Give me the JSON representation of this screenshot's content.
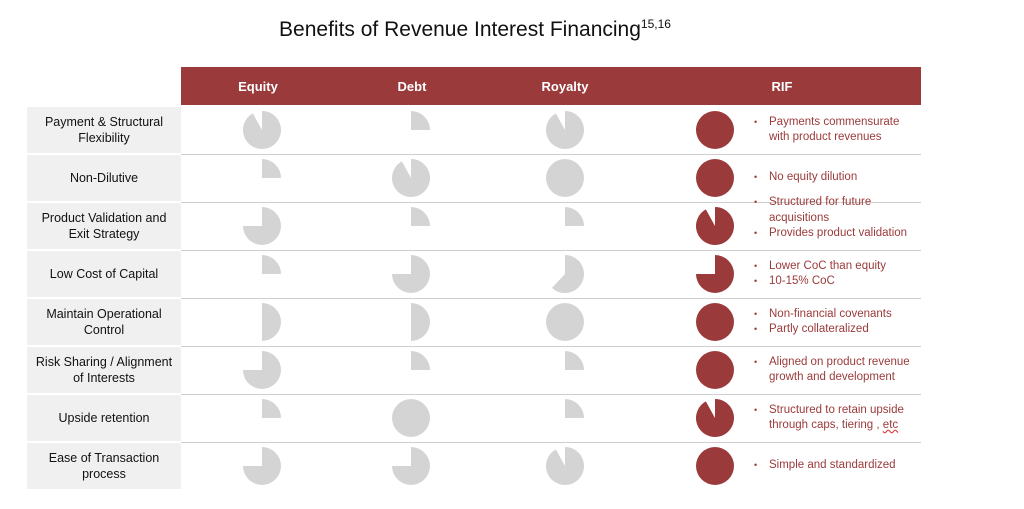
{
  "title": "Benefits of Revenue Interest Financing",
  "title_superscript": "15,16",
  "columns": [
    "Equity",
    "Debt",
    "Royalty",
    "RIF"
  ],
  "colors": {
    "header": "#9b3a3b",
    "pie_gray": "#d4d4d4",
    "pie_rif": "#9b3a3b",
    "note_text": "#9b3a3b",
    "label_bg": "#f0f0f0"
  },
  "rows": [
    {
      "label": "Payment & Structural Flexibility",
      "ratings": [
        0.92,
        0.25,
        0.92,
        1.0
      ],
      "notes": [
        "Payments commensurate with product revenues"
      ]
    },
    {
      "label": "Non-Dilutive",
      "ratings": [
        0.25,
        0.92,
        1.0,
        1.0
      ],
      "notes": [
        "No equity dilution"
      ]
    },
    {
      "label": "Product Validation and Exit Strategy",
      "ratings": [
        0.75,
        0.25,
        0.25,
        0.92
      ],
      "notes": [
        "Structured for future acquisitions",
        "Provides product validation"
      ]
    },
    {
      "label": "Low Cost of Capital",
      "ratings": [
        0.25,
        0.75,
        0.62,
        0.75
      ],
      "notes": [
        "Lower CoC than equity",
        "10-15% CoC"
      ]
    },
    {
      "label": "Maintain Operational Control",
      "ratings": [
        0.5,
        0.5,
        1.0,
        1.0
      ],
      "notes": [
        "Non-financial covenants",
        "Partly collateralized"
      ]
    },
    {
      "label": "Risk Sharing / Alignment of Interests",
      "ratings": [
        0.75,
        0.25,
        0.25,
        1.0
      ],
      "notes": [
        "Aligned on product revenue growth and development"
      ]
    },
    {
      "label": "Upside retention",
      "ratings": [
        0.25,
        1.0,
        0.25,
        0.92
      ],
      "notes": [
        "Structured to retain upside through caps, tiering , etc"
      ]
    },
    {
      "label": "Ease of Transaction process",
      "ratings": [
        0.75,
        0.75,
        0.92,
        1.0
      ],
      "notes": [
        "Simple and standardized"
      ]
    }
  ]
}
